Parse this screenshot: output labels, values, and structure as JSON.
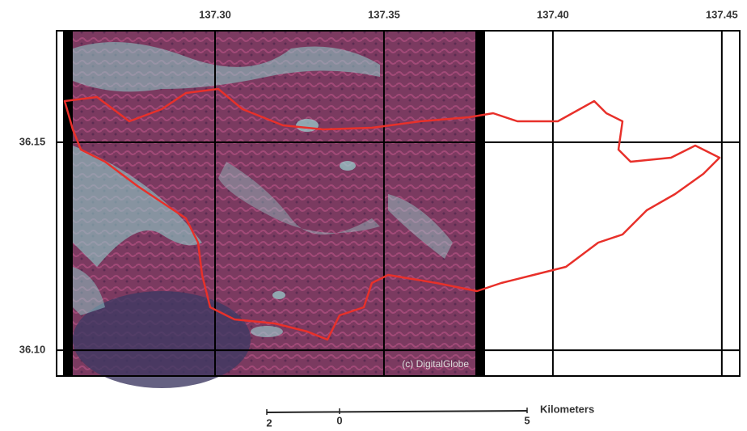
{
  "map": {
    "xlim": [
      137.2531,
      137.4553
    ],
    "ylim": [
      36.0938,
      36.1768
    ],
    "xticks": [
      {
        "value": 137.3,
        "label": "137.30"
      },
      {
        "value": 137.35,
        "label": "137.35"
      },
      {
        "value": 137.4,
        "label": "137.40"
      },
      {
        "value": 137.45,
        "label": "137.45"
      }
    ],
    "yticks": [
      {
        "value": 36.15,
        "label": "36.15"
      },
      {
        "value": 36.1,
        "label": "36.10"
      }
    ],
    "credit": "(c) DigitalGlobe"
  },
  "scale_bar": {
    "labels": [
      "2",
      "0",
      "5"
    ],
    "unit": "Kilometers"
  }
}
